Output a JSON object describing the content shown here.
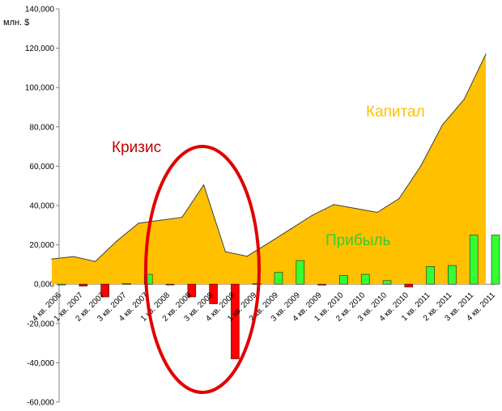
{
  "chart_data": {
    "type": "area",
    "ylabel": "млн. $",
    "ylim": [
      -60000,
      140000
    ],
    "yticks": [
      -60000,
      -40000,
      -20000,
      0,
      20000,
      40000,
      60000,
      80000,
      100000,
      120000,
      140000
    ],
    "ytick_labels": [
      "-60,000",
      "-40,000",
      "-20,000",
      "0,000",
      "20,000",
      "40,000",
      "60,000",
      "80,000",
      "100,000",
      "120,000",
      "140,000"
    ],
    "categories": [
      "4 кв. 2006",
      "1 кв. 2007",
      "2 кв. 2007",
      "3 кв. 2007",
      "4 кв. 2007",
      "1 кв. 2008",
      "2 кв. 2008",
      "3 кв. 2008",
      "4 кв. 2008",
      "1 кв. 2009",
      "2 кв. 2009",
      "3 кв. 2009",
      "4 кв. 2009",
      "1 кв. 2010",
      "2 кв. 2010",
      "3 кв. 2010",
      "4 кв. 2010",
      "1 кв. 2011",
      "2 кв. 2011",
      "3 кв. 2011",
      "4 кв. 2011"
    ],
    "series": [
      {
        "kind": "area",
        "color": "#ffc000",
        "values": [
          12800,
          14000,
          11500,
          22000,
          31000,
          32500,
          34000,
          50500,
          16500,
          14200,
          21000,
          28000,
          35000,
          40500,
          38500,
          36500,
          43500,
          60000,
          81000,
          94000,
          117000
        ]
      },
      {
        "kind": "bar",
        "colors": {
          "positive": "#33ff33",
          "negative": "#ff0000"
        },
        "values": [
          0,
          -1000,
          -6500,
          300,
          5000,
          -300,
          -6500,
          -10000,
          -38000,
          300,
          6000,
          12000,
          -500,
          4500,
          5000,
          1800,
          -1500,
          9000,
          9500,
          25000,
          25000
        ]
      }
    ],
    "annotations": [
      {
        "text": "Кризис",
        "color": "#c00000"
      },
      {
        "text": "Капитал",
        "color": "#ffc000"
      },
      {
        "text": "Прибыль",
        "color": "#33cc33"
      }
    ],
    "highlight": {
      "shape": "ellipse",
      "color": "#e00000",
      "around": [
        "2 кв. 2008",
        "1 кв. 2009"
      ]
    }
  }
}
